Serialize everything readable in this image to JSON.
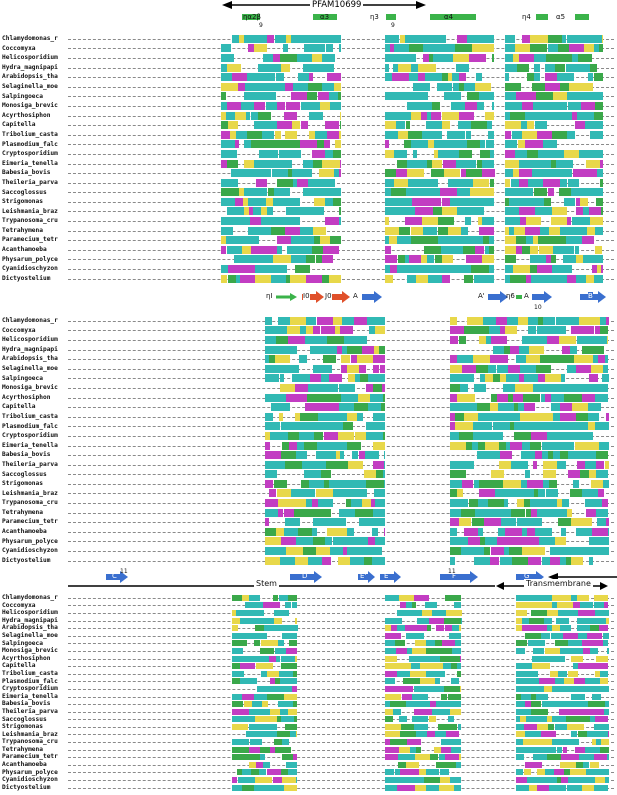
{
  "title": "PFAM10699",
  "species": [
    "Chlamydomonas_r",
    "Coccomyxa",
    "Helicosporidium",
    "Hydra_magnipapi",
    "Arabidopsis_tha",
    "Selaginella_moe",
    "Salpingoeca",
    "Monosiga_brevic",
    "Acyrthosiphon",
    "Capitella",
    "Tribolium_casta",
    "Plasmodium_falc",
    "Cryptosporidium",
    "Eimeria_tenella",
    "Babesia_bovis",
    "Theileria_parva",
    "Saccoglossus",
    "Strigomonas",
    "Leishmania_braz",
    "Trypanosoma_cru",
    "Tetrahymena",
    "Paramecium_tetr",
    "Acanthamoeba",
    "Physarum_polyce",
    "Cyanidioschyzon",
    "Dictyostelium"
  ],
  "colors": {
    "teal": "#31b9b4",
    "green": "#3aa84a",
    "magenta": "#c23dc2",
    "yellow": "#e8d84a",
    "blue_arrow": "#3a6fcf",
    "red_arrow": "#e0502a",
    "green_bar": "#3bb34a"
  },
  "block1": {
    "features": [
      {
        "type": "bar",
        "label": "ηα2β"
      },
      {
        "type": "bar",
        "label": "α3"
      },
      {
        "type": "bar",
        "label": "η3"
      },
      {
        "type": "bar",
        "label": "α4"
      },
      {
        "type": "bar",
        "label": "η4"
      },
      {
        "type": "bar",
        "label": "α5"
      }
    ],
    "numbers": [
      "9",
      "9"
    ]
  },
  "block2": {
    "features": [
      {
        "type": "bar",
        "label": "ηI"
      },
      {
        "type": "arrow",
        "label": "I0"
      },
      {
        "type": "arrow",
        "label": "J0"
      },
      {
        "type": "arrow",
        "label": "A"
      },
      {
        "type": "arrow",
        "label": "A'"
      },
      {
        "type": "bar",
        "label": "η6"
      },
      {
        "type": "arrow",
        "label": "A"
      },
      {
        "type": "arrow",
        "label": "B"
      }
    ],
    "numbers": [
      "10"
    ]
  },
  "block3": {
    "features": [
      {
        "type": "arrow",
        "label": "C"
      },
      {
        "type": "arrow",
        "label": "D"
      },
      {
        "type": "arrow",
        "label": "E'"
      },
      {
        "type": "arrow",
        "label": "E"
      },
      {
        "type": "arrow",
        "label": "F"
      },
      {
        "type": "arrow",
        "label": "G"
      }
    ],
    "numbers": [
      "11",
      "11"
    ]
  },
  "block4": {
    "labels": [
      "Stem",
      "Transmembrane"
    ]
  }
}
